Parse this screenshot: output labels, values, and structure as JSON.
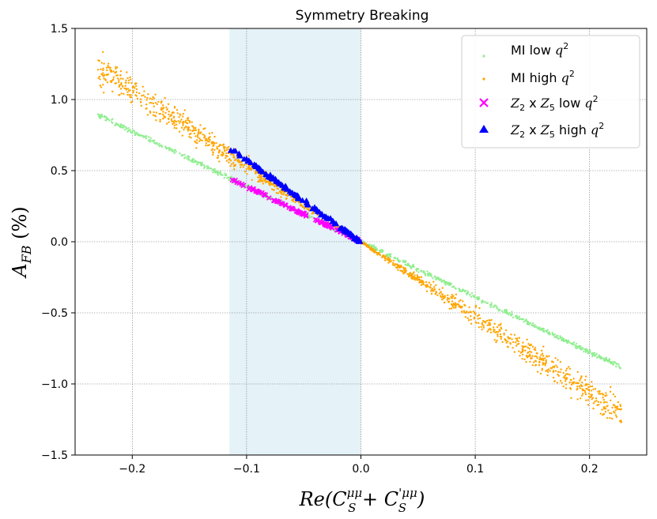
{
  "chart_data": {
    "type": "scatter",
    "title": "Symmetry Breaking",
    "xlabel": "Re(C_S^{μμ} + C_S^{'μμ})",
    "ylabel": "A_FB (%)",
    "xlim": [
      -0.25,
      0.25
    ],
    "ylim": [
      -1.5,
      1.5
    ],
    "xticks": [
      -0.2,
      -0.1,
      0.0,
      0.1,
      0.2
    ],
    "xtick_labels": [
      "−0.2",
      "−0.1",
      "0.0",
      "0.1",
      "0.2"
    ],
    "yticks": [
      -1.5,
      -1.0,
      -0.5,
      0.0,
      0.5,
      1.0,
      1.5
    ],
    "ytick_labels": [
      "−1.5",
      "−1.0",
      "−0.5",
      "0.0",
      "0.5",
      "1.0",
      "1.5"
    ],
    "grid": true,
    "legend_position": "top-right",
    "shaded_region": {
      "x": [
        -0.115,
        0.0
      ],
      "color": "#add8e6"
    },
    "series": [
      {
        "name": "MI low q^2",
        "marker": "dot",
        "color": "#90ee90",
        "slope": -3.88,
        "x_range": [
          -0.23,
          0.228
        ],
        "spread": 0.008
      },
      {
        "name": "MI high q^2",
        "marker": "dot",
        "color": "#ffa500",
        "slope": -5.3,
        "x_range": [
          -0.23,
          0.228
        ],
        "spread": 0.05
      },
      {
        "name": "Z2 x Z5 low q^2",
        "marker": "x",
        "color": "#ff00ff",
        "slope": -3.88,
        "x_range": [
          -0.115,
          0.0
        ]
      },
      {
        "name": "Z2 x Z5 high q^2",
        "marker": "triangle",
        "color": "#0000ff",
        "slope": -5.75,
        "x_range": [
          -0.115,
          0.0
        ]
      }
    ]
  },
  "legend": {
    "items": [
      {
        "prefix": "MI low ",
        "var": "q",
        "exp": "2"
      },
      {
        "prefix": "MI high ",
        "var": "q",
        "exp": "2"
      },
      {
        "z1": "Z",
        "s1": "2",
        "mid": " x ",
        "z2": "Z",
        "s2": "5",
        "suffix": " low ",
        "var": "q",
        "exp": "2"
      },
      {
        "z1": "Z",
        "s1": "2",
        "mid": " x ",
        "z2": "Z",
        "s2": "5",
        "suffix": " high ",
        "var": "q",
        "exp": "2"
      }
    ]
  },
  "axis_text": {
    "y_A": "A",
    "y_sub": "FB",
    "y_rest": " (%)",
    "x_pre": "Re(",
    "x_C1": "C",
    "x_C1_sup": "μμ",
    "x_C1_sub": "S",
    "x_plus": " + ",
    "x_C2": "C",
    "x_C2_sup": "'μμ",
    "x_C2_sub": "S",
    "x_close": ")"
  }
}
